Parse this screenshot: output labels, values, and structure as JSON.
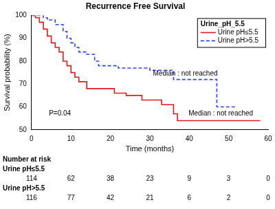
{
  "chart_data": {
    "type": "line",
    "title": "Recurrence Free Survival",
    "x_label": "Time (months)",
    "y_label": "Survival probability (%)",
    "xlim": [
      0,
      60
    ],
    "xticks": [
      0,
      10,
      20,
      30,
      40,
      50,
      60
    ],
    "ylim": [
      50,
      100
    ],
    "yticks": [
      50,
      60,
      70,
      80,
      90,
      100
    ],
    "grid": false,
    "legend": "upper right",
    "legend_title": "Urine_pH_5.5",
    "series": [
      {
        "name": "Urine pH≤5.5",
        "color": "#e3191c",
        "line_style": "solid",
        "x": [
          0,
          1,
          2,
          3,
          4,
          5,
          6,
          7,
          8,
          9,
          10,
          11,
          12,
          14,
          21,
          24,
          28,
          33,
          36,
          37,
          58
        ],
        "values": [
          100,
          99,
          97,
          94,
          91,
          88,
          86,
          84,
          80,
          78,
          75,
          73,
          71,
          68,
          66,
          65,
          63,
          61,
          57,
          54,
          54
        ]
      },
      {
        "name": "Urine pH>5.5",
        "color": "#2d44f0",
        "line_style": "dashed",
        "x": [
          0,
          3,
          4,
          6,
          8,
          9,
          10,
          11,
          12,
          14,
          16,
          17,
          22,
          30,
          36,
          47,
          52
        ],
        "values": [
          100,
          99,
          98,
          96,
          93,
          90,
          88,
          86,
          84,
          83,
          80,
          78,
          77,
          76,
          72,
          60,
          60
        ]
      }
    ],
    "annotations": [
      "P=0.04",
      "Median : not reached",
      "Median : not reached"
    ],
    "risk_table": {
      "title": "Number at risk",
      "times": [
        0,
        10,
        20,
        30,
        40,
        50,
        60
      ],
      "rows": [
        {
          "name": "Urine pH≤5.5",
          "values": [
            114,
            62,
            38,
            23,
            9,
            3,
            0
          ]
        },
        {
          "name": "Urine pH>5.5",
          "values": [
            116,
            77,
            42,
            21,
            6,
            2,
            0
          ]
        }
      ]
    }
  }
}
